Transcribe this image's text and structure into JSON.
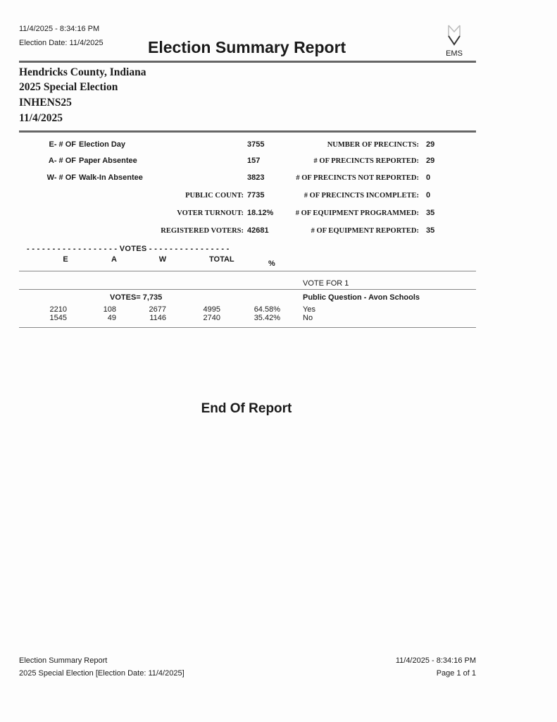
{
  "header": {
    "timestamp": "11/4/2025 - 8:34:16 PM",
    "election_date": "Election Date: 11/4/2025",
    "title": "Election Summary Report",
    "logo_text": "EMS"
  },
  "jurisdiction": [
    "Hendricks County, Indiana",
    "2025 Special Election",
    "INHENS25",
    "11/4/2025"
  ],
  "ballot_types": [
    {
      "code": "E- # OF",
      "name": "Election Day",
      "value": "3755"
    },
    {
      "code": "A- # OF",
      "name": "Paper Absentee",
      "value": "157"
    },
    {
      "code": "W- # OF",
      "name": "Walk-In Absentee",
      "value": "3823"
    }
  ],
  "totals": [
    {
      "label": "PUBLIC COUNT:",
      "value": "7735"
    },
    {
      "label": "VOTER TURNOUT:",
      "value": "18.12%"
    },
    {
      "label": "REGISTERED VOTERS:",
      "value": "42681"
    }
  ],
  "precincts": [
    {
      "label": "NUMBER OF PRECINCTS:",
      "value": "29"
    },
    {
      "label": "# OF PRECINCTS REPORTED:",
      "value": "29"
    },
    {
      "label": "# OF PRECINCTS NOT REPORTED:",
      "value": "0"
    },
    {
      "label": "# OF PRECINCTS INCOMPLETE:",
      "value": "0"
    },
    {
      "label": "# OF EQUIPMENT PROGRAMMED:",
      "value": "35"
    },
    {
      "label": "# OF EQUIPMENT REPORTED:",
      "value": "35"
    }
  ],
  "votes_table": {
    "banner": "- - - - - - - - - - - - - - - - - - VOTES - - - - - - - - - - - - - - - -",
    "columns": [
      "E",
      "A",
      "W",
      "TOTAL",
      "%"
    ],
    "vote_for": "VOTE FOR 1",
    "votes_total": "VOTES= 7,735",
    "contest": "Public Question - Avon Schools",
    "rows": [
      {
        "e": "2210",
        "a": "108",
        "w": "2677",
        "total": "4995",
        "pct": "64.58%",
        "choice": "Yes"
      },
      {
        "e": "1545",
        "a": "49",
        "w": "1146",
        "total": "2740",
        "pct": "35.42%",
        "choice": "No"
      }
    ]
  },
  "end_text": "End Of Report",
  "footer": {
    "left1": "Election Summary Report",
    "left2": "2025 Special Election [Election Date: 11/4/2025]",
    "right1": "11/4/2025 - 8:34:16 PM",
    "right2": "Page 1 of 1"
  }
}
